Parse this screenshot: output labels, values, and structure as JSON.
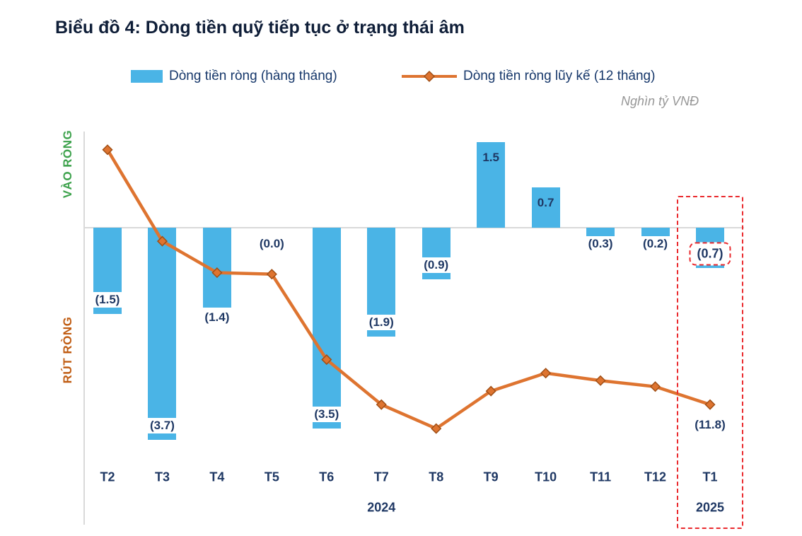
{
  "title": "Biểu đồ 4: Dòng tiền quỹ tiếp tục ở trạng thái âm",
  "legend": [
    {
      "label": "Dòng tiền ròng (hàng tháng)"
    },
    {
      "label": "Dòng tiền ròng lũy kế (12 tháng)"
    }
  ],
  "unit_label": "Nghìn tỷ VNĐ",
  "colors": {
    "bar": "#4ab4e6",
    "line": "#de7430",
    "marker_border": "#a04f16",
    "label_text": "#1f3864",
    "inflow_green": "#3da24c",
    "outflow_orange": "#c05c12",
    "highlight_red": "#ea2a2e",
    "axis_gray": "#d9d9d9",
    "unit_gray": "#979797"
  },
  "chart_data": {
    "type": "combo",
    "categories": [
      "T2",
      "T3",
      "T4",
      "T5",
      "T6",
      "T7",
      "T8",
      "T9",
      "T10",
      "T11",
      "T12",
      "T1"
    ],
    "year_groups": [
      {
        "label": "2024",
        "from": 0,
        "to": 10
      },
      {
        "label": "2025",
        "from": 11,
        "to": 11
      }
    ],
    "axis_left_top": "VÀO RÒNG",
    "axis_left_bottom": "RÚT RÒNG",
    "highlight_category": "T1",
    "legend_position": "top",
    "grid": "zero-line-only",
    "series": [
      {
        "name": "Dòng tiền ròng (hàng tháng)",
        "type": "bar",
        "axis": "primary",
        "values": [
          -1.5,
          -3.7,
          -1.4,
          0.0,
          -3.5,
          -1.9,
          -0.9,
          1.5,
          0.7,
          -0.3,
          -0.2,
          -0.7
        ],
        "labels": [
          "(1.5)",
          "(3.7)",
          "(1.4)",
          "(0.0)",
          "(3.5)",
          "(1.9)",
          "(0.9)",
          "1.5",
          "0.7",
          "(0.3)",
          "(0.2)",
          "(0.7)"
        ],
        "label_positions": [
          "inside-end",
          "inside-end",
          "outside-end",
          "near-zero",
          "inside-end",
          "inside-end",
          "inside-end",
          "inside-end",
          "inside-end",
          "near-zero",
          "near-zero",
          "inside-end"
        ]
      },
      {
        "name": "Dòng tiền ròng lũy kế (12 tháng)",
        "type": "line",
        "axis": "secondary",
        "values": [
          5.2,
          -0.9,
          -3.0,
          -3.1,
          -8.8,
          -11.8,
          -13.4,
          -10.9,
          -9.7,
          -10.2,
          -10.6,
          -11.8
        ],
        "end_label": "(11.8)"
      }
    ]
  }
}
